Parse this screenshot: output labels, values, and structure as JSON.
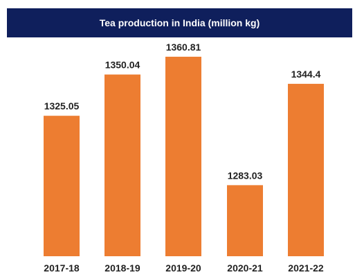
{
  "chart_data": {
    "type": "bar",
    "title": "Tea production in India (million kg)",
    "categories": [
      "2017-18",
      "2018-19",
      "2019-20",
      "2020-21",
      "2021-22"
    ],
    "values": [
      1325.05,
      1350.04,
      1360.81,
      1283.03,
      1344.4
    ],
    "value_labels": [
      "1325.05",
      "1350.04",
      "1360.81",
      "1283.03",
      "1344.4"
    ],
    "xlabel": "",
    "ylabel": "",
    "ylim": [
      1240,
      1370
    ],
    "grid": false,
    "legend": "none",
    "colors": {
      "bar": "#ed7d31",
      "title_background": "#0f1f5c",
      "title_text": "#ffffff",
      "text": "#222222"
    }
  }
}
